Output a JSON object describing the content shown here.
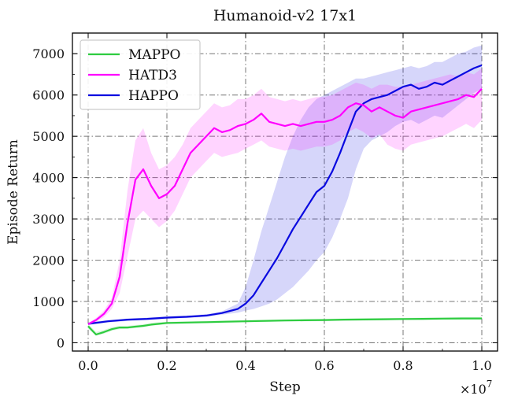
{
  "chart_data": {
    "type": "line",
    "title": "Humanoid-v2 17x1",
    "xlabel": "Step",
    "ylabel": "Episode Return",
    "x_scale_label": "×10",
    "x_scale_exponent": "7",
    "xlim": [
      -0.04,
      1.04
    ],
    "ylim": [
      -200,
      7500
    ],
    "xticks": [
      0.0,
      0.2,
      0.4,
      0.6,
      0.8,
      1.0
    ],
    "xtick_labels": [
      "0.0",
      "0.2",
      "0.4",
      "0.6",
      "0.8",
      "1.0"
    ],
    "yticks": [
      0,
      1000,
      2000,
      3000,
      4000,
      5000,
      6000,
      7000
    ],
    "ytick_labels": [
      "0",
      "1000",
      "2000",
      "3000",
      "4000",
      "5000",
      "6000",
      "7000"
    ],
    "grid": true,
    "legend_position": "top-left",
    "series": [
      {
        "name": "MAPPO",
        "color": "#2ecc40",
        "x": [
          0.0,
          0.02,
          0.04,
          0.06,
          0.08,
          0.1,
          0.12,
          0.14,
          0.16,
          0.18,
          0.2,
          0.25,
          0.3,
          0.35,
          0.4,
          0.45,
          0.5,
          0.55,
          0.6,
          0.65,
          0.7,
          0.75,
          0.8,
          0.85,
          0.9,
          0.95,
          1.0
        ],
        "y": [
          400,
          200,
          260,
          330,
          370,
          370,
          390,
          410,
          440,
          460,
          480,
          490,
          500,
          510,
          520,
          530,
          540,
          545,
          550,
          560,
          565,
          570,
          575,
          580,
          585,
          590,
          590
        ],
        "lower": [
          340,
          170,
          220,
          290,
          330,
          340,
          360,
          380,
          410,
          430,
          450,
          465,
          475,
          485,
          495,
          505,
          515,
          520,
          525,
          535,
          540,
          545,
          550,
          555,
          560,
          565,
          565
        ],
        "upper": [
          460,
          260,
          310,
          380,
          410,
          410,
          430,
          450,
          480,
          500,
          510,
          520,
          530,
          540,
          550,
          560,
          570,
          575,
          580,
          590,
          595,
          600,
          605,
          610,
          615,
          620,
          620
        ]
      },
      {
        "name": "HATD3",
        "color": "#ff00ff",
        "x": [
          0.0,
          0.02,
          0.04,
          0.06,
          0.08,
          0.1,
          0.12,
          0.14,
          0.16,
          0.18,
          0.2,
          0.22,
          0.24,
          0.26,
          0.28,
          0.3,
          0.32,
          0.34,
          0.36,
          0.38,
          0.4,
          0.42,
          0.44,
          0.46,
          0.48,
          0.5,
          0.52,
          0.54,
          0.56,
          0.58,
          0.6,
          0.62,
          0.64,
          0.66,
          0.68,
          0.7,
          0.72,
          0.74,
          0.76,
          0.78,
          0.8,
          0.82,
          0.84,
          0.86,
          0.88,
          0.9,
          0.92,
          0.94,
          0.96,
          0.98,
          1.0
        ],
        "y": [
          450,
          550,
          700,
          950,
          1600,
          2900,
          3950,
          4200,
          3800,
          3500,
          3600,
          3800,
          4200,
          4600,
          4800,
          5000,
          5200,
          5100,
          5150,
          5250,
          5300,
          5400,
          5550,
          5350,
          5300,
          5250,
          5300,
          5250,
          5300,
          5350,
          5350,
          5400,
          5500,
          5700,
          5800,
          5750,
          5600,
          5700,
          5600,
          5500,
          5450,
          5600,
          5650,
          5700,
          5750,
          5800,
          5850,
          5900,
          6000,
          5950,
          6150
        ],
        "lower": [
          420,
          500,
          620,
          820,
          1200,
          2100,
          3000,
          3200,
          3000,
          2800,
          2950,
          3200,
          3600,
          4000,
          4200,
          4400,
          4600,
          4500,
          4550,
          4600,
          4700,
          4800,
          4900,
          4750,
          4700,
          4650,
          4700,
          4650,
          4700,
          4750,
          4750,
          4800,
          4900,
          5100,
          5200,
          5100,
          4950,
          5050,
          4800,
          4700,
          4650,
          4800,
          4850,
          4900,
          4950,
          5000,
          5100,
          5200,
          5300,
          5200,
          5400
        ],
        "upper": [
          480,
          600,
          780,
          1080,
          2000,
          3700,
          4900,
          5200,
          4600,
          4200,
          4300,
          4500,
          4800,
          5200,
          5400,
          5600,
          5800,
          5700,
          5750,
          5900,
          5900,
          6000,
          6150,
          5950,
          5900,
          5850,
          5900,
          5850,
          5900,
          5950,
          5950,
          6000,
          6100,
          6200,
          6300,
          6250,
          6150,
          6250,
          6250,
          6200,
          6200,
          6250,
          6300,
          6350,
          6400,
          6450,
          6500,
          6450,
          6550,
          6500,
          6650
        ]
      },
      {
        "name": "HAPPO",
        "color": "#0a0ae0",
        "x": [
          0.0,
          0.05,
          0.1,
          0.15,
          0.2,
          0.25,
          0.3,
          0.34,
          0.38,
          0.4,
          0.42,
          0.44,
          0.46,
          0.48,
          0.5,
          0.52,
          0.54,
          0.56,
          0.58,
          0.6,
          0.62,
          0.64,
          0.66,
          0.68,
          0.7,
          0.72,
          0.74,
          0.76,
          0.78,
          0.8,
          0.82,
          0.84,
          0.86,
          0.88,
          0.9,
          0.92,
          0.94,
          0.96,
          0.98,
          1.0
        ],
        "y": [
          460,
          520,
          560,
          580,
          610,
          630,
          660,
          720,
          820,
          950,
          1150,
          1450,
          1750,
          2050,
          2400,
          2750,
          3050,
          3350,
          3650,
          3800,
          4150,
          4600,
          5100,
          5600,
          5800,
          5900,
          5950,
          6000,
          6100,
          6200,
          6250,
          6150,
          6200,
          6300,
          6250,
          6350,
          6450,
          6550,
          6650,
          6720
        ],
        "lower": [
          430,
          490,
          530,
          550,
          580,
          600,
          630,
          680,
          730,
          780,
          820,
          880,
          950,
          1050,
          1200,
          1350,
          1550,
          1750,
          2000,
          2200,
          2550,
          3000,
          3500,
          4200,
          4700,
          4900,
          5000,
          5100,
          5250,
          5350,
          5400,
          5300,
          5400,
          5500,
          5450,
          5600,
          5750,
          5900,
          6050,
          6150
        ],
        "upper": [
          490,
          550,
          590,
          610,
          640,
          660,
          690,
          760,
          950,
          1350,
          2000,
          2700,
          3300,
          3900,
          4500,
          5000,
          5400,
          5700,
          5900,
          6000,
          6100,
          6200,
          6300,
          6400,
          6400,
          6450,
          6500,
          6550,
          6600,
          6650,
          6700,
          6650,
          6700,
          6800,
          6800,
          6900,
          7000,
          7050,
          7150,
          7200
        ]
      }
    ]
  }
}
